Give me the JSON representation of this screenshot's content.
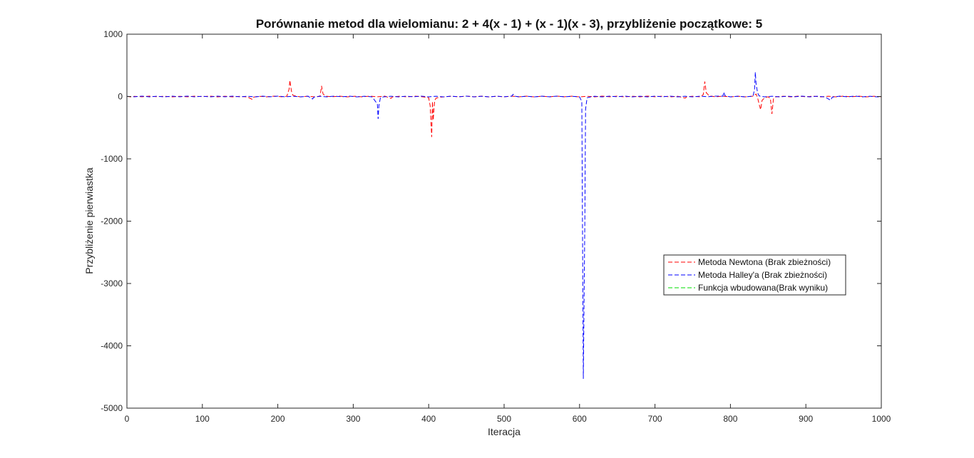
{
  "chart_data": {
    "type": "line",
    "title": "Porównanie metod dla wielomianu: 2 + 4(x - 1) + (x - 1)(x - 3), przybliżenie początkowe: 5",
    "xlabel": "Iteracja",
    "ylabel": "Przybliżenie pierwiastka",
    "xlim": [
      0,
      1000
    ],
    "ylim": [
      -5000,
      1000
    ],
    "x_ticks": [
      "0",
      "100",
      "200",
      "300",
      "400",
      "500",
      "600",
      "700",
      "800",
      "900",
      "1000"
    ],
    "y_ticks": [
      "1000",
      "0",
      "-1000",
      "-2000",
      "-3000",
      "-4000",
      "-5000"
    ],
    "grid": false,
    "legend_position": "right",
    "series": [
      {
        "name": "Metoda Newtona (Brak zbieżności)",
        "color": "#ff0000",
        "style": "dashed",
        "points": [
          [
            0,
            2
          ],
          [
            5,
            -5
          ],
          [
            10,
            3
          ],
          [
            20,
            -4
          ],
          [
            30,
            5
          ],
          [
            40,
            -3
          ],
          [
            50,
            4
          ],
          [
            60,
            -6
          ],
          [
            70,
            3
          ],
          [
            80,
            -4
          ],
          [
            90,
            5
          ],
          [
            100,
            -3
          ],
          [
            110,
            6
          ],
          [
            120,
            -5
          ],
          [
            130,
            4
          ],
          [
            140,
            -6
          ],
          [
            150,
            3
          ],
          [
            160,
            -8
          ],
          [
            166,
            -45
          ],
          [
            168,
            -10
          ],
          [
            175,
            4
          ],
          [
            185,
            -5
          ],
          [
            195,
            6
          ],
          [
            205,
            -4
          ],
          [
            212,
            5
          ],
          [
            215,
            120
          ],
          [
            216,
            260
          ],
          [
            218,
            90
          ],
          [
            220,
            20
          ],
          [
            224,
            6
          ],
          [
            230,
            -5
          ],
          [
            240,
            4
          ],
          [
            250,
            -6
          ],
          [
            256,
            3
          ],
          [
            258,
            170
          ],
          [
            260,
            40
          ],
          [
            264,
            5
          ],
          [
            272,
            -4
          ],
          [
            282,
            5
          ],
          [
            292,
            -6
          ],
          [
            302,
            4
          ],
          [
            312,
            -5
          ],
          [
            322,
            6
          ],
          [
            332,
            -4
          ],
          [
            342,
            5
          ],
          [
            350,
            -30
          ],
          [
            352,
            -5
          ],
          [
            362,
            4
          ],
          [
            372,
            -6
          ],
          [
            382,
            5
          ],
          [
            392,
            -4
          ],
          [
            400,
            -20
          ],
          [
            402,
            -150
          ],
          [
            404,
            -650
          ],
          [
            405,
            -80
          ],
          [
            406,
            -380
          ],
          [
            407,
            -200
          ],
          [
            408,
            -60
          ],
          [
            410,
            -25
          ],
          [
            415,
            -10
          ],
          [
            420,
            -5
          ],
          [
            430,
            4
          ],
          [
            440,
            -5
          ],
          [
            450,
            6
          ],
          [
            460,
            -4
          ],
          [
            470,
            5
          ],
          [
            480,
            -6
          ],
          [
            490,
            4
          ],
          [
            500,
            -5
          ],
          [
            510,
            6
          ],
          [
            520,
            -4
          ],
          [
            530,
            5
          ],
          [
            540,
            -6
          ],
          [
            550,
            4
          ],
          [
            560,
            -5
          ],
          [
            570,
            6
          ],
          [
            580,
            -4
          ],
          [
            590,
            5
          ],
          [
            600,
            -6
          ],
          [
            610,
            4
          ],
          [
            620,
            -5
          ],
          [
            630,
            6
          ],
          [
            640,
            -4
          ],
          [
            650,
            5
          ],
          [
            660,
            -6
          ],
          [
            670,
            4
          ],
          [
            680,
            -5
          ],
          [
            690,
            6
          ],
          [
            700,
            -4
          ],
          [
            710,
            5
          ],
          [
            720,
            -6
          ],
          [
            730,
            4
          ],
          [
            740,
            -25
          ],
          [
            742,
            -5
          ],
          [
            750,
            4
          ],
          [
            760,
            -5
          ],
          [
            764,
            30
          ],
          [
            766,
            240
          ],
          [
            768,
            60
          ],
          [
            772,
            10
          ],
          [
            780,
            -4
          ],
          [
            790,
            5
          ],
          [
            800,
            -6
          ],
          [
            810,
            4
          ],
          [
            820,
            -5
          ],
          [
            830,
            6
          ],
          [
            834,
            40
          ],
          [
            836,
            -20
          ],
          [
            838,
            -120
          ],
          [
            840,
            -210
          ],
          [
            842,
            -60
          ],
          [
            846,
            -15
          ],
          [
            850,
            -5
          ],
          [
            853,
            -30
          ],
          [
            855,
            -280
          ],
          [
            857,
            -40
          ],
          [
            860,
            -5
          ],
          [
            870,
            4
          ],
          [
            880,
            -5
          ],
          [
            890,
            6
          ],
          [
            900,
            -4
          ],
          [
            910,
            5
          ],
          [
            920,
            -6
          ],
          [
            930,
            4
          ],
          [
            940,
            -5
          ],
          [
            950,
            6
          ],
          [
            960,
            -4
          ],
          [
            970,
            5
          ],
          [
            980,
            -6
          ],
          [
            990,
            4
          ],
          [
            1000,
            -3
          ]
        ]
      },
      {
        "name": "Metoda Halley'a (Brak zbieżności)",
        "color": "#0000ff",
        "style": "dashed",
        "points": [
          [
            0,
            3
          ],
          [
            10,
            -4
          ],
          [
            20,
            5
          ],
          [
            30,
            -5
          ],
          [
            40,
            4
          ],
          [
            50,
            -6
          ],
          [
            60,
            5
          ],
          [
            70,
            -4
          ],
          [
            80,
            6
          ],
          [
            90,
            -5
          ],
          [
            100,
            4
          ],
          [
            110,
            -6
          ],
          [
            120,
            5
          ],
          [
            130,
            -4
          ],
          [
            140,
            6
          ],
          [
            150,
            -5
          ],
          [
            160,
            4
          ],
          [
            170,
            -6
          ],
          [
            180,
            5
          ],
          [
            190,
            -4
          ],
          [
            200,
            6
          ],
          [
            210,
            -5
          ],
          [
            220,
            4
          ],
          [
            230,
            -6
          ],
          [
            240,
            5
          ],
          [
            246,
            -40
          ],
          [
            248,
            -10
          ],
          [
            255,
            4
          ],
          [
            265,
            -5
          ],
          [
            275,
            6
          ],
          [
            285,
            -4
          ],
          [
            295,
            5
          ],
          [
            305,
            -6
          ],
          [
            315,
            4
          ],
          [
            325,
            -5
          ],
          [
            332,
            -120
          ],
          [
            333,
            -360
          ],
          [
            334,
            -150
          ],
          [
            336,
            -20
          ],
          [
            340,
            -5
          ],
          [
            350,
            4
          ],
          [
            360,
            -6
          ],
          [
            370,
            5
          ],
          [
            380,
            -4
          ],
          [
            390,
            6
          ],
          [
            400,
            -5
          ],
          [
            410,
            4
          ],
          [
            420,
            -6
          ],
          [
            430,
            5
          ],
          [
            440,
            -4
          ],
          [
            450,
            6
          ],
          [
            460,
            -5
          ],
          [
            470,
            4
          ],
          [
            480,
            -6
          ],
          [
            490,
            5
          ],
          [
            500,
            -4
          ],
          [
            510,
            6
          ],
          [
            512,
            35
          ],
          [
            514,
            5
          ],
          [
            520,
            -5
          ],
          [
            530,
            4
          ],
          [
            540,
            -6
          ],
          [
            550,
            5
          ],
          [
            560,
            -4
          ],
          [
            570,
            6
          ],
          [
            580,
            -5
          ],
          [
            590,
            4
          ],
          [
            600,
            -6
          ],
          [
            603,
            -80
          ],
          [
            605,
            -4530
          ],
          [
            607,
            -2000
          ],
          [
            608,
            -200
          ],
          [
            610,
            -20
          ],
          [
            615,
            -5
          ],
          [
            620,
            4
          ],
          [
            630,
            -6
          ],
          [
            640,
            5
          ],
          [
            650,
            -4
          ],
          [
            660,
            6
          ],
          [
            670,
            -5
          ],
          [
            680,
            4
          ],
          [
            690,
            -6
          ],
          [
            700,
            5
          ],
          [
            710,
            -4
          ],
          [
            720,
            6
          ],
          [
            730,
            -5
          ],
          [
            740,
            4
          ],
          [
            750,
            -6
          ],
          [
            760,
            5
          ],
          [
            770,
            -4
          ],
          [
            780,
            6
          ],
          [
            790,
            5
          ],
          [
            791,
            70
          ],
          [
            793,
            10
          ],
          [
            800,
            -5
          ],
          [
            810,
            4
          ],
          [
            820,
            -6
          ],
          [
            830,
            5
          ],
          [
            832,
            120
          ],
          [
            833,
            390
          ],
          [
            834,
            200
          ],
          [
            836,
            60
          ],
          [
            838,
            10
          ],
          [
            845,
            -5
          ],
          [
            855,
            4
          ],
          [
            865,
            -6
          ],
          [
            875,
            5
          ],
          [
            885,
            -4
          ],
          [
            895,
            6
          ],
          [
            905,
            -5
          ],
          [
            915,
            4
          ],
          [
            925,
            -6
          ],
          [
            933,
            -60
          ],
          [
            935,
            -10
          ],
          [
            945,
            5
          ],
          [
            955,
            -4
          ],
          [
            965,
            6
          ],
          [
            975,
            -5
          ],
          [
            985,
            4
          ],
          [
            995,
            -6
          ],
          [
            1000,
            2
          ]
        ]
      },
      {
        "name": "Funkcja wbudowana(Brak wyniku)",
        "color": "#00dd00",
        "style": "dashed",
        "points": []
      }
    ]
  }
}
